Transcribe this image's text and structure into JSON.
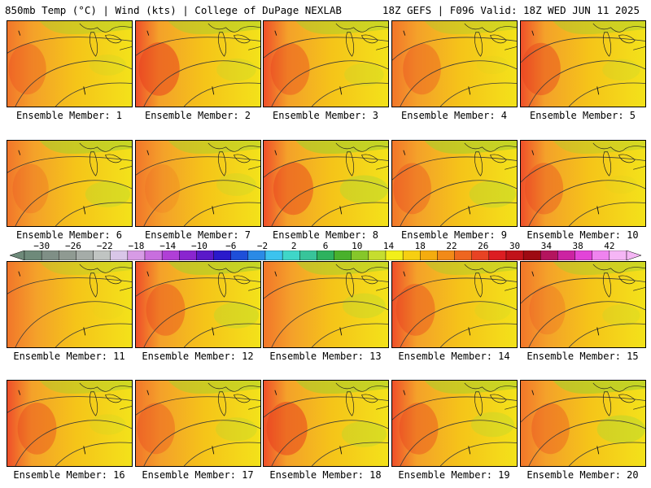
{
  "header": {
    "left": "850mb Temp (°C) | Wind (kts) | College of DuPage NEXLAB",
    "right": "18Z GEFS | F096 Valid: 18Z WED JUN 11 2025"
  },
  "members": [
    {
      "label": "Ensemble Member: 1",
      "warmth": 0.78,
      "green": 0.22
    },
    {
      "label": "Ensemble Member: 2",
      "warmth": 0.95,
      "green": 0.3
    },
    {
      "label": "Ensemble Member: 3",
      "warmth": 0.85,
      "green": 0.3
    },
    {
      "label": "Ensemble Member: 4",
      "warmth": 0.8,
      "green": 0.1
    },
    {
      "label": "Ensemble Member: 5",
      "warmth": 0.88,
      "green": 0.25
    },
    {
      "label": "Ensemble Member: 6",
      "warmth": 0.7,
      "green": 0.45
    },
    {
      "label": "Ensemble Member: 7",
      "warmth": 0.65,
      "green": 0.3
    },
    {
      "label": "Ensemble Member: 8",
      "warmth": 0.9,
      "green": 0.55
    },
    {
      "label": "Ensemble Member: 9",
      "warmth": 0.8,
      "green": 0.5
    },
    {
      "label": "Ensemble Member: 10",
      "warmth": 0.82,
      "green": 0.1
    },
    {
      "label": "Ensemble Member: 11",
      "warmth": 0.5,
      "green": 0.05
    },
    {
      "label": "Ensemble Member: 12",
      "warmth": 0.85,
      "green": 0.45
    },
    {
      "label": "Ensemble Member: 13",
      "warmth": 0.5,
      "green": 0.4
    },
    {
      "label": "Ensemble Member: 14",
      "warmth": 0.85,
      "green": 0.2
    },
    {
      "label": "Ensemble Member: 15",
      "warmth": 0.7,
      "green": 0.25
    },
    {
      "label": "Ensemble Member: 16",
      "warmth": 0.85,
      "green": 0.2
    },
    {
      "label": "Ensemble Member: 17",
      "warmth": 0.8,
      "green": 0.35
    },
    {
      "label": "Ensemble Member: 18",
      "warmth": 0.95,
      "green": 0.45
    },
    {
      "label": "Ensemble Member: 19",
      "warmth": 0.85,
      "green": 0.4
    },
    {
      "label": "Ensemble Member: 20",
      "warmth": 0.8,
      "green": 0.55
    }
  ],
  "colorbar": {
    "units": "°C",
    "ticks": [
      "−30",
      "−26",
      "−22",
      "−18",
      "−14",
      "−10",
      "−6",
      "−2",
      "2",
      "6",
      "10",
      "14",
      "18",
      "22",
      "26",
      "30",
      "34",
      "38",
      "42"
    ],
    "colors": [
      "#6e8a7a",
      "#7f8f86",
      "#8f9a92",
      "#a5aca8",
      "#c0c4c2",
      "#d9c6e8",
      "#d79be5",
      "#c86ede",
      "#b03fd6",
      "#8a25cf",
      "#5a19c9",
      "#2a1acb",
      "#1e4fd9",
      "#2a8ae6",
      "#3cc3ee",
      "#3fd6c8",
      "#38c49a",
      "#2db25e",
      "#49b12c",
      "#86c72a",
      "#c6dd2f",
      "#f2ef1a",
      "#f6cf12",
      "#f4ac0f",
      "#f28a18",
      "#ee6620",
      "#e84324",
      "#dc1d22",
      "#c1121a",
      "#9e0a12",
      "#b4145e",
      "#cc23a2",
      "#e244d8",
      "#ef83ef",
      "#f5b6f5"
    ]
  }
}
